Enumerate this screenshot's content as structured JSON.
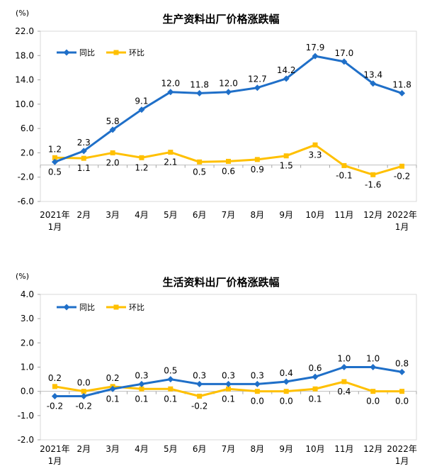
{
  "colors": {
    "tongbi_blue": "#1f6fc8",
    "huanbi_yellow": "#ffc000",
    "plot_border": "#d9d9d9",
    "zero_line": "#bfbfbf",
    "tick_mark": "#a6a6a6",
    "text": "#000000"
  },
  "chart_data": [
    {
      "type": "line",
      "title": "生产资料出厂价格涨跌幅",
      "unit_label": "(%)",
      "xlabel": "",
      "ylabel": "(%)",
      "ylim": [
        -6.0,
        22.0
      ],
      "yticks": [
        22.0,
        18.0,
        14.0,
        10.0,
        6.0,
        2.0,
        -2.0,
        -6.0
      ],
      "grid": "zero-line-only",
      "legend_position": "inside-top-left",
      "x_labels": [
        [
          "2021年",
          "1月"
        ],
        [
          "2月"
        ],
        [
          "3月"
        ],
        [
          "4月"
        ],
        [
          "5月"
        ],
        [
          "6月"
        ],
        [
          "7月"
        ],
        [
          "8月"
        ],
        [
          "9月"
        ],
        [
          "10月"
        ],
        [
          "11月"
        ],
        [
          "12月"
        ],
        [
          "2022年",
          "1月"
        ]
      ],
      "series": [
        {
          "name": "同比",
          "marker": "diamond",
          "color": "#1f6fc8",
          "values": [
            0.5,
            2.3,
            5.8,
            9.1,
            12.0,
            11.8,
            12.0,
            12.7,
            14.2,
            17.9,
            17.0,
            13.4,
            11.8
          ]
        },
        {
          "name": "环比",
          "marker": "square",
          "color": "#ffc000",
          "values": [
            1.2,
            1.1,
            2.0,
            1.2,
            2.1,
            0.5,
            0.6,
            0.9,
            1.5,
            3.3,
            -0.1,
            -1.6,
            -0.2
          ]
        }
      ]
    },
    {
      "type": "line",
      "title": "生活资料出厂价格涨跌幅",
      "unit_label": "(%)",
      "xlabel": "",
      "ylabel": "(%)",
      "ylim": [
        -2.0,
        4.0
      ],
      "yticks": [
        4.0,
        3.0,
        2.0,
        1.0,
        0.0,
        -1.0,
        -2.0
      ],
      "grid": "zero-line-only",
      "legend_position": "inside-top-left",
      "x_labels": [
        [
          "2021年",
          "1月"
        ],
        [
          "2月"
        ],
        [
          "3月"
        ],
        [
          "4月"
        ],
        [
          "5月"
        ],
        [
          "6月"
        ],
        [
          "7月"
        ],
        [
          "8月"
        ],
        [
          "9月"
        ],
        [
          "10月"
        ],
        [
          "11月"
        ],
        [
          "12月"
        ],
        [
          "2022年",
          "1月"
        ]
      ],
      "series": [
        {
          "name": "同比",
          "marker": "diamond",
          "color": "#1f6fc8",
          "values": [
            -0.2,
            -0.2,
            0.1,
            0.3,
            0.5,
            0.3,
            0.3,
            0.3,
            0.4,
            0.6,
            1.0,
            1.0,
            0.8
          ]
        },
        {
          "name": "环比",
          "marker": "square",
          "color": "#ffc000",
          "values": [
            0.2,
            0.0,
            0.2,
            0.1,
            0.1,
            -0.2,
            0.1,
            0.0,
            0.0,
            0.1,
            0.4,
            0.0,
            0.0
          ]
        }
      ]
    }
  ]
}
